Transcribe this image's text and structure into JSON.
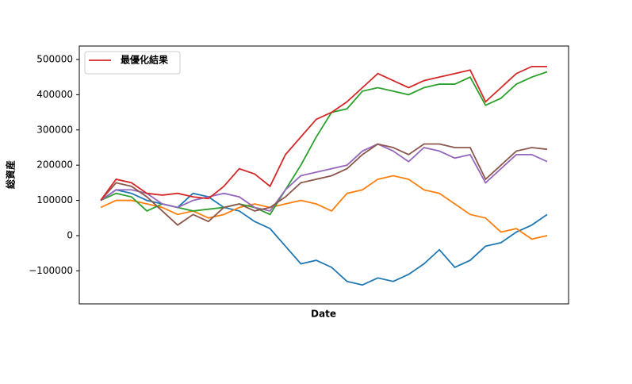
{
  "chart_data": {
    "type": "line",
    "xlabel": "Date",
    "ylabel": "総資産",
    "ylim": [
      -193700,
      538200
    ],
    "yticks": [
      {
        "value": -100000,
        "label": "−100000"
      },
      0,
      100000,
      200000,
      300000,
      400000,
      500000
    ],
    "legend": "upper left",
    "series": [
      {
        "color": "#1f77b4",
        "values": [
          100000,
          130000,
          120000,
          100000,
          90000,
          80000,
          120000,
          110000,
          80000,
          70000,
          40000,
          20000,
          -30000,
          -80000,
          -70000,
          -90000,
          -130000,
          -140000,
          -120000,
          -130000,
          -110000,
          -80000,
          -40000,
          -90000,
          -70000,
          -30000,
          -20000,
          10000,
          30000,
          60000
        ]
      },
      {
        "color": "#ff7f0e",
        "values": [
          80000,
          100000,
          100000,
          90000,
          80000,
          60000,
          70000,
          50000,
          60000,
          80000,
          90000,
          80000,
          90000,
          100000,
          90000,
          70000,
          120000,
          130000,
          160000,
          170000,
          160000,
          130000,
          120000,
          90000,
          60000,
          50000,
          10000,
          20000,
          -10000,
          0
        ]
      },
      {
        "color": "#2ca02c",
        "values": [
          100000,
          120000,
          110000,
          70000,
          90000,
          80000,
          70000,
          75000,
          80000,
          90000,
          80000,
          60000,
          130000,
          200000,
          280000,
          350000,
          360000,
          410000,
          420000,
          410000,
          400000,
          420000,
          430000,
          430000,
          450000,
          370000,
          390000,
          430000,
          450000,
          465000
        ]
      },
      {
        "color": "#9467bd",
        "values": [
          100000,
          130000,
          130000,
          120000,
          90000,
          80000,
          100000,
          110000,
          120000,
          110000,
          80000,
          70000,
          130000,
          170000,
          180000,
          190000,
          200000,
          240000,
          260000,
          240000,
          210000,
          250000,
          240000,
          220000,
          230000,
          150000,
          190000,
          230000,
          230000,
          210000
        ]
      },
      {
        "color": "#8c564b",
        "values": [
          100000,
          150000,
          140000,
          110000,
          70000,
          30000,
          60000,
          40000,
          80000,
          90000,
          70000,
          80000,
          110000,
          150000,
          160000,
          170000,
          190000,
          230000,
          260000,
          250000,
          230000,
          260000,
          260000,
          250000,
          250000,
          160000,
          200000,
          240000,
          250000,
          245000
        ]
      },
      {
        "name": "最優化結果",
        "color": "#d62728",
        "values": [
          100000,
          160000,
          150000,
          120000,
          115000,
          120000,
          110000,
          105000,
          140000,
          190000,
          175000,
          140000,
          230000,
          280000,
          330000,
          350000,
          380000,
          420000,
          460000,
          440000,
          420000,
          440000,
          450000,
          460000,
          470000,
          380000,
          420000,
          460000,
          480000,
          480000
        ]
      }
    ]
  }
}
